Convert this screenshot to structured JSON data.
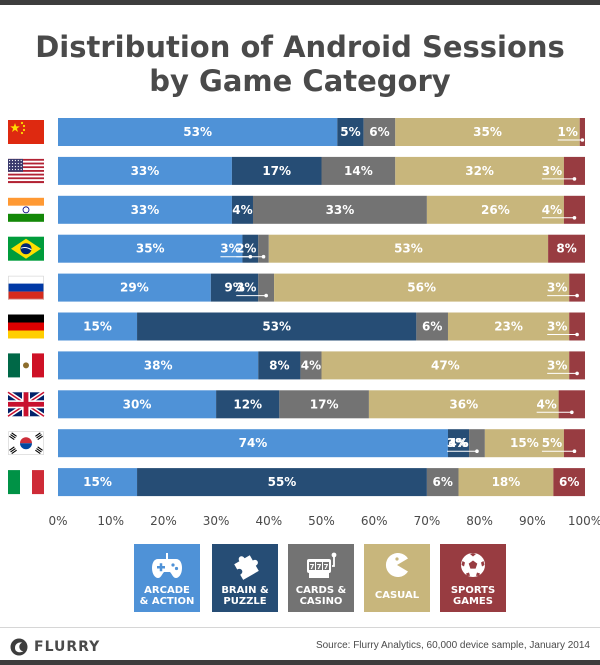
{
  "colors": {
    "arcade": "#4f92d7",
    "brain": "#264d75",
    "cards": "#737373",
    "casual": "#c8b67c",
    "sports": "#983c41"
  },
  "chart_data": {
    "type": "bar",
    "orientation": "horizontal",
    "stacked": true,
    "title": "Distribution of Android Sessions by Game Category",
    "title_lines": [
      "Distribution of Android Sessions",
      "by Game Category"
    ],
    "categories": [
      "China flag",
      "United States flag",
      "India flag",
      "Brazil flag",
      "Russia flag",
      "Germany flag",
      "Mexico flag",
      "United Kingdom flag",
      "South Korea flag",
      "Italy flag"
    ],
    "series": [
      {
        "name": "ARCADE & ACTION",
        "values": [
          53,
          33,
          33,
          35,
          29,
          15,
          38,
          30,
          74,
          15
        ]
      },
      {
        "name": "BRAIN & PUZZLE",
        "values": [
          5,
          17,
          4,
          3,
          9,
          53,
          8,
          12,
          4,
          55
        ]
      },
      {
        "name": "CARDS & CASINO",
        "values": [
          6,
          14,
          33,
          2,
          3,
          6,
          4,
          17,
          3,
          6
        ]
      },
      {
        "name": "CASUAL",
        "values": [
          35,
          32,
          26,
          53,
          56,
          23,
          47,
          36,
          15,
          18
        ]
      },
      {
        "name": "SPORTS GAMES",
        "values": [
          1,
          3,
          4,
          8,
          3,
          3,
          3,
          4,
          5,
          6
        ]
      }
    ],
    "xlim": [
      0,
      100
    ],
    "xticks": [
      "0%",
      "10%",
      "20%",
      "30%",
      "40%",
      "50%",
      "60%",
      "70%",
      "80%",
      "90%",
      "100%"
    ],
    "value_suffix": "%",
    "grid": false,
    "legend_position": "bottom"
  },
  "legend": [
    {
      "line1": "ARCADE",
      "line2": "& ACTION",
      "icon": "gamepad-icon"
    },
    {
      "line1": "BRAIN &",
      "line2": "PUZZLE",
      "icon": "puzzle-piece-icon"
    },
    {
      "line1": "CARDS &",
      "line2": "CASINO",
      "icon": "slot-machine-icon"
    },
    {
      "line1": "CASUAL",
      "line2": "",
      "icon": "pacman-icon"
    },
    {
      "line1": "SPORTS",
      "line2": "GAMES",
      "icon": "soccer-ball-icon"
    }
  ],
  "footer": {
    "logo": "FLURRY",
    "source": "Source: Flurry Analytics, 60,000 device sample, January 2014"
  }
}
